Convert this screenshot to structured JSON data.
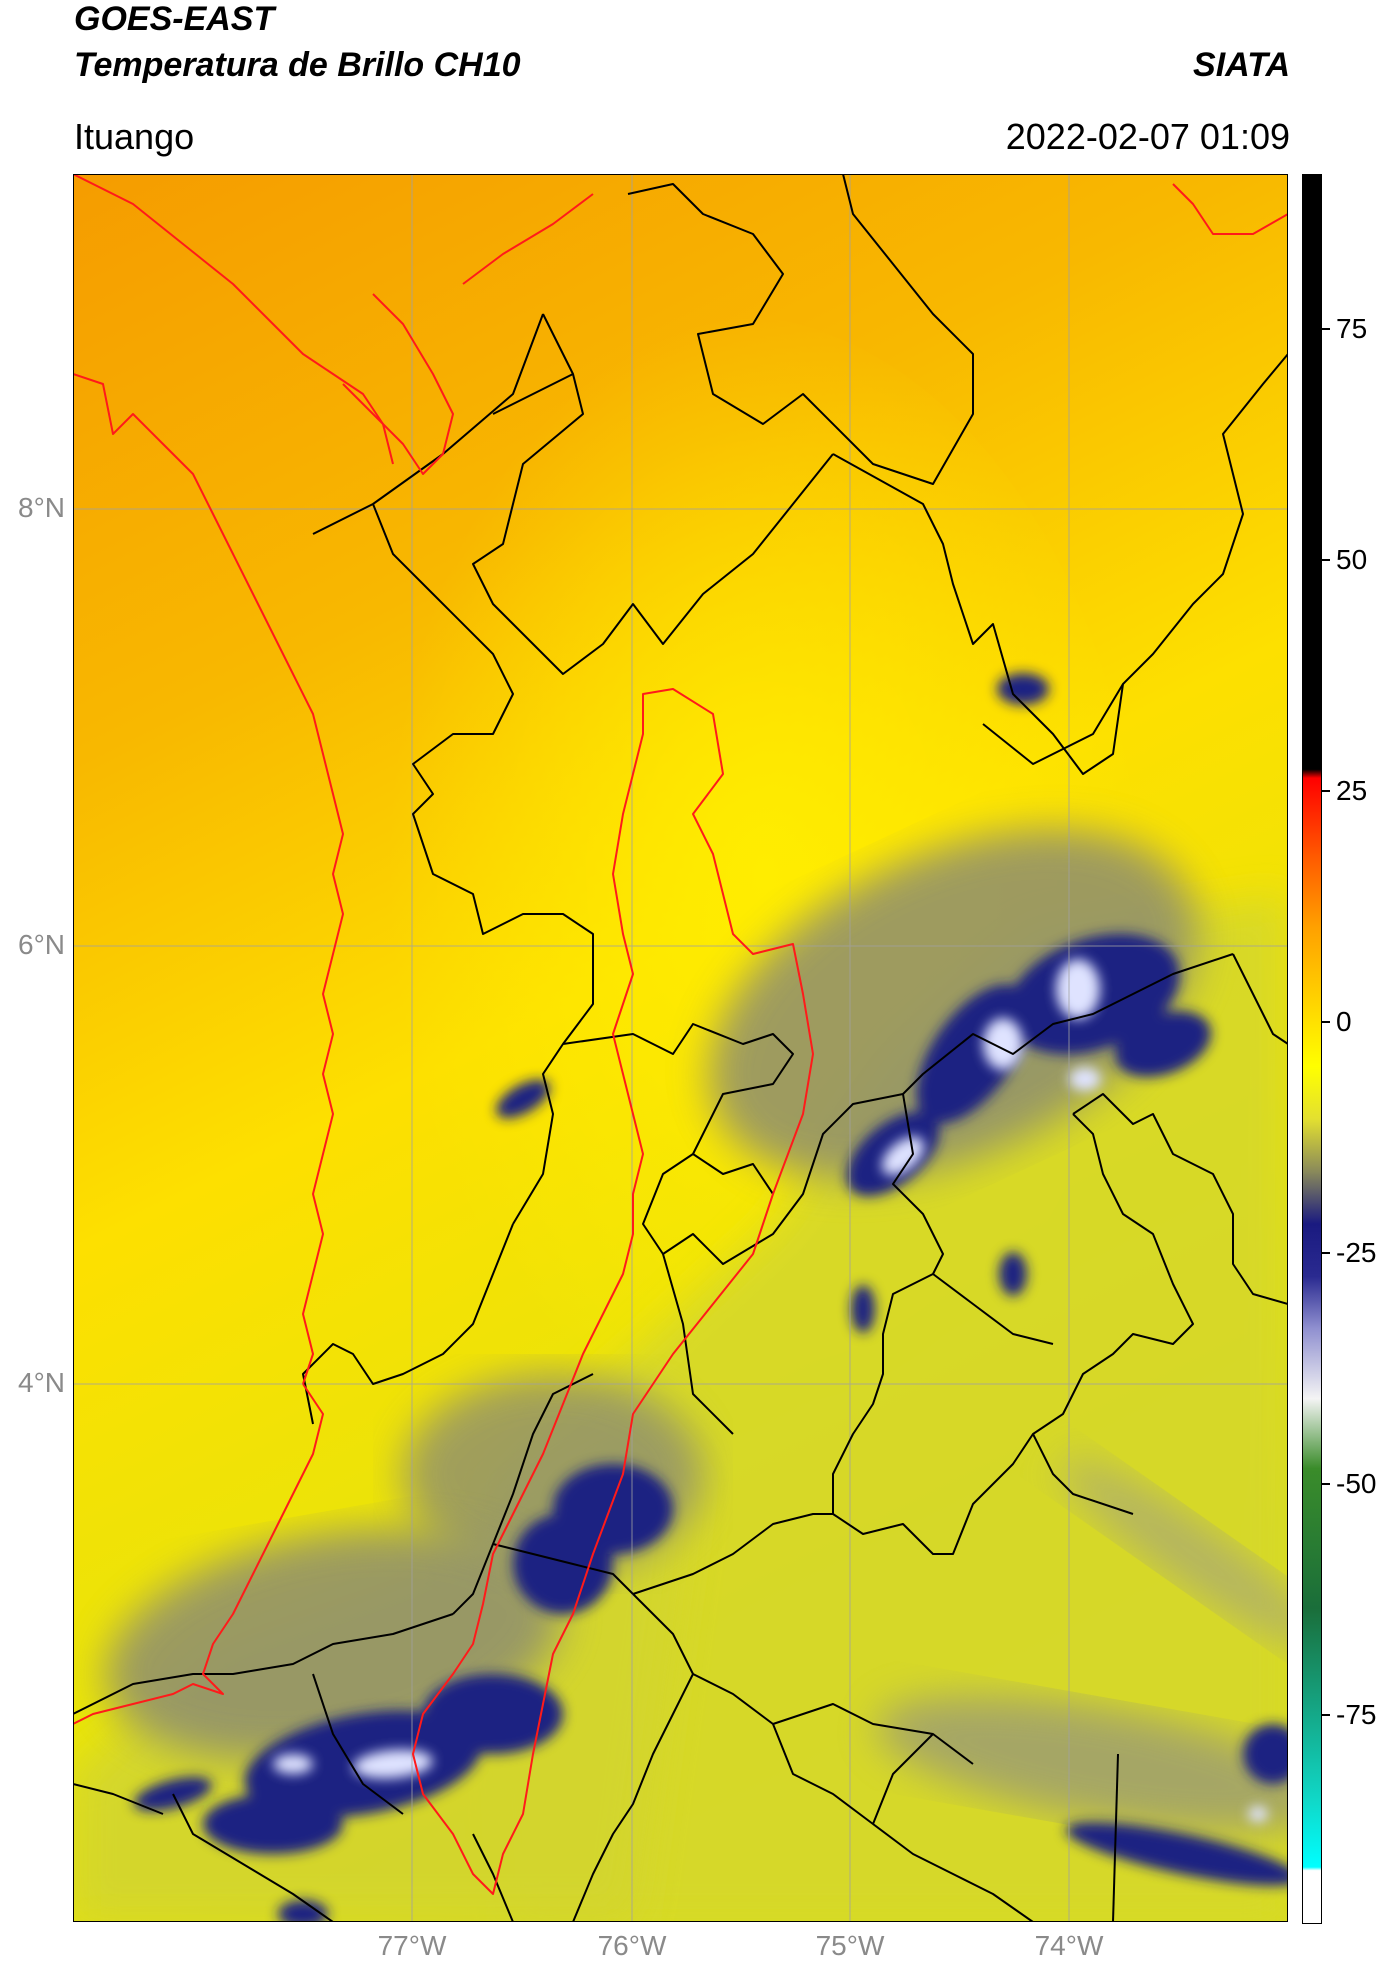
{
  "header": {
    "title_line1": "GOES-EAST",
    "title_line2": "Temperatura de Brillo CH10",
    "brand": "SIATA",
    "location": "Ituango",
    "datetime": "2022-02-07 01:09"
  },
  "map": {
    "lat_labels": [
      "8°N",
      "6°N",
      "4°N"
    ],
    "lon_labels": [
      "77°W",
      "76°W",
      "75°W",
      "74°W"
    ],
    "colors": {
      "warm_orange": "#f5a300",
      "yellow": "#ffee00",
      "olive": "#cfd13a",
      "gray": "#8f8f6e",
      "navy": "#141a78",
      "white_blue": "#e8ecff",
      "border_black": "#000000",
      "border_red": "#ff1a1a"
    }
  },
  "colorbar": {
    "ticks": [
      "75",
      "50",
      "25",
      "0",
      "-25",
      "-50",
      "-75"
    ]
  }
}
